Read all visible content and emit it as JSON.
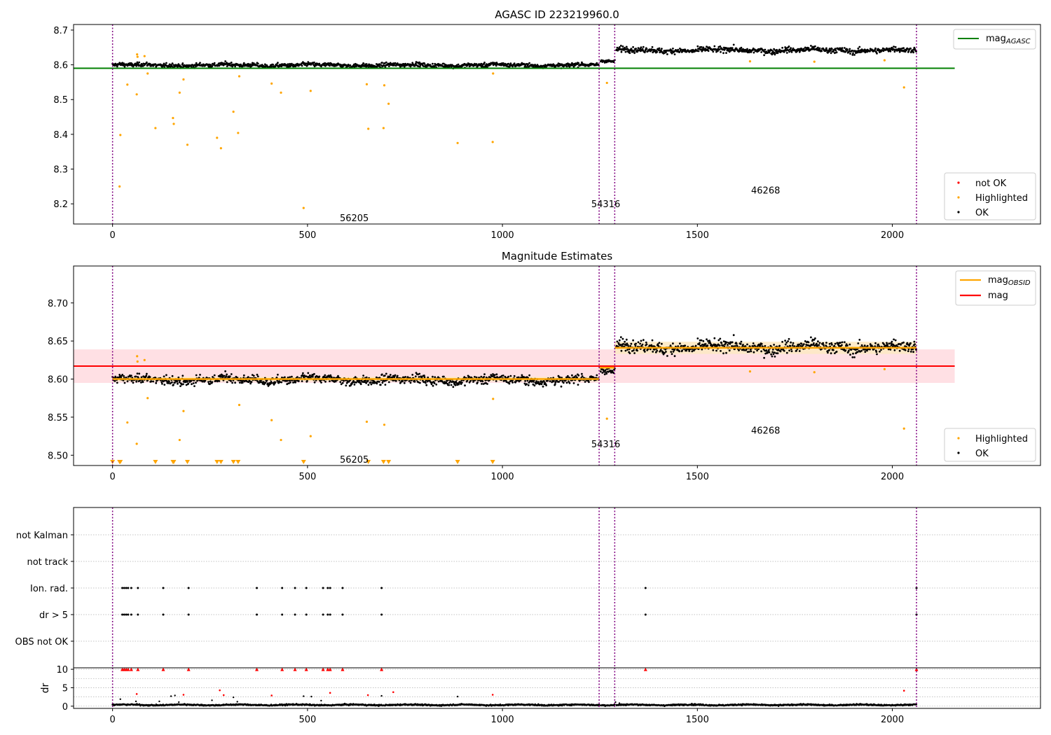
{
  "colors": {
    "ok": "#000000",
    "highlighted": "#ffa500",
    "not_ok": "#ff0000",
    "agasc_line": "#008000",
    "mag_line": "#ff0000",
    "mag_obsid_line": "#ffa500",
    "mag_band": "#ffe0e4",
    "obsid_band": "#fde9c4",
    "obs_boundary": "#800080",
    "grid": "#b0b0b0"
  },
  "chart_data": [
    {
      "type": "scatter",
      "title": "AGASC ID 223219960.0",
      "xlim": [
        -100,
        2380
      ],
      "ylim": [
        8.142,
        8.716
      ],
      "xticks": [
        0,
        500,
        1000,
        1500,
        2000
      ],
      "xtick_labels": [
        "0",
        "500",
        "1000",
        "1500",
        "2000"
      ],
      "yticks": [
        8.2,
        8.3,
        8.4,
        8.5,
        8.6,
        8.7
      ],
      "ytick_labels": [
        "8.2",
        "8.3",
        "8.4",
        "8.5",
        "8.6",
        "8.7"
      ],
      "obs_boundaries": [
        0,
        1248,
        1288,
        2062
      ],
      "obsid_labels": [
        {
          "text": "56205",
          "x": 620,
          "y": 8.16
        },
        {
          "text": "54316",
          "x": 1265,
          "y": 8.2
        },
        {
          "text": "46268",
          "x": 1675,
          "y": 8.24
        }
      ],
      "hlines": [
        {
          "name": "mag_AGASC",
          "y": 8.59,
          "x0": -100,
          "x1": 2160
        }
      ],
      "ok_segments": [
        {
          "x0": 0,
          "x1": 1248,
          "level": 8.599,
          "spread": 0.0055,
          "step": 1.2
        },
        {
          "x0": 1252,
          "x1": 1288,
          "level": 8.612,
          "spread": 0.004,
          "step": 1.5
        },
        {
          "x0": 1292,
          "x1": 2062,
          "level": 8.642,
          "spread": 0.0075,
          "step": 1.2
        }
      ],
      "highlighted": [
        [
          18,
          8.25
        ],
        [
          20,
          8.398
        ],
        [
          38,
          8.543
        ],
        [
          62,
          8.515
        ],
        [
          63,
          8.63
        ],
        [
          64,
          8.623
        ],
        [
          82,
          8.625
        ],
        [
          90,
          8.575
        ],
        [
          110,
          8.418
        ],
        [
          155,
          8.447
        ],
        [
          157,
          8.43
        ],
        [
          172,
          8.52
        ],
        [
          182,
          8.558
        ],
        [
          192,
          8.37
        ],
        [
          268,
          8.39
        ],
        [
          278,
          8.36
        ],
        [
          310,
          8.465
        ],
        [
          322,
          8.404
        ],
        [
          325,
          8.567
        ],
        [
          408,
          8.546
        ],
        [
          432,
          8.52
        ],
        [
          490,
          8.188
        ],
        [
          508,
          8.525
        ],
        [
          652,
          8.544
        ],
        [
          656,
          8.416
        ],
        [
          695,
          8.418
        ],
        [
          697,
          8.541
        ],
        [
          708,
          8.488
        ],
        [
          885,
          8.375
        ],
        [
          975,
          8.378
        ],
        [
          976,
          8.575
        ],
        [
          1268,
          8.548
        ],
        [
          1635,
          8.61
        ],
        [
          1800,
          8.609
        ],
        [
          1980,
          8.613
        ],
        [
          2030,
          8.535
        ]
      ],
      "not_ok": [],
      "legend_lines": [
        {
          "base": "mag",
          "sub": "AGASC",
          "color": "#008000"
        }
      ],
      "legend_points": [
        {
          "label": "not OK",
          "color": "#ff0000"
        },
        {
          "label": "Highlighted",
          "color": "#ffa500"
        },
        {
          "label": "OK",
          "color": "#000000"
        }
      ]
    },
    {
      "type": "scatter",
      "title": "Magnitude Estimates",
      "xlim": [
        -100,
        2380
      ],
      "ylim": [
        8.4865,
        8.7485
      ],
      "xticks": [
        0,
        500,
        1000,
        1500,
        2000
      ],
      "xtick_labels": [
        "0",
        "500",
        "1000",
        "1500",
        "2000"
      ],
      "yticks": [
        8.5,
        8.55,
        8.6,
        8.65,
        8.7
      ],
      "ytick_labels": [
        "8.50",
        "8.55",
        "8.60",
        "8.65",
        "8.70"
      ],
      "obs_boundaries": [
        0,
        1248,
        1288,
        2062
      ],
      "obsid_labels": [
        {
          "text": "56205",
          "x": 620,
          "y": 8.495
        },
        {
          "text": "54316",
          "x": 1265,
          "y": 8.515
        },
        {
          "text": "46268",
          "x": 1675,
          "y": 8.533
        }
      ],
      "mag": {
        "y": 8.617,
        "band": [
          8.595,
          8.639
        ],
        "x0": -100,
        "x1": 2160
      },
      "mag_obsid": [
        {
          "x0": 0,
          "x1": 1248,
          "y": 8.6,
          "band": [
            8.597,
            8.603
          ]
        },
        {
          "x0": 1248,
          "x1": 1288,
          "y": 8.615,
          "band": [
            8.611,
            8.619
          ]
        },
        {
          "x0": 1288,
          "x1": 2062,
          "y": 8.641,
          "band": [
            8.633,
            8.649
          ]
        }
      ],
      "ok_segments": [
        {
          "x0": 0,
          "x1": 1248,
          "level": 8.599,
          "spread": 0.0055,
          "step": 1.2
        },
        {
          "x0": 1252,
          "x1": 1288,
          "level": 8.612,
          "spread": 0.004,
          "step": 1.5
        },
        {
          "x0": 1292,
          "x1": 2062,
          "level": 8.642,
          "spread": 0.0075,
          "step": 1.2
        }
      ],
      "highlighted": [
        [
          38,
          8.543
        ],
        [
          62,
          8.515
        ],
        [
          63,
          8.63
        ],
        [
          64,
          8.623
        ],
        [
          82,
          8.625
        ],
        [
          90,
          8.575
        ],
        [
          172,
          8.52
        ],
        [
          182,
          8.558
        ],
        [
          325,
          8.566
        ],
        [
          408,
          8.546
        ],
        [
          432,
          8.52
        ],
        [
          508,
          8.525
        ],
        [
          652,
          8.544
        ],
        [
          697,
          8.54
        ],
        [
          976,
          8.574
        ],
        [
          1268,
          8.548
        ],
        [
          1635,
          8.61
        ],
        [
          1800,
          8.609
        ],
        [
          1980,
          8.613
        ],
        [
          2030,
          8.535
        ]
      ],
      "clipped_low": [
        0,
        18,
        20,
        110,
        155,
        157,
        192,
        268,
        278,
        310,
        322,
        490,
        656,
        695,
        708,
        885,
        975
      ],
      "legend_lines": [
        {
          "base": "mag",
          "sub": "OBSID",
          "color": "#ffa500"
        },
        {
          "base": "mag",
          "sub": "",
          "color": "#ff0000"
        }
      ],
      "legend_points": [
        {
          "label": "Highlighted",
          "color": "#ffa500"
        },
        {
          "label": "OK",
          "color": "#000000"
        }
      ]
    },
    {
      "type": "scatter",
      "title": "",
      "xlim": [
        -100,
        2380
      ],
      "categories": [
        "not Kalman",
        "not track",
        "Ion. rad.",
        "dr > 5",
        "OBS not OK"
      ],
      "flag_points": {
        "not Kalman": [],
        "not track": [],
        "Ion. rad.": [
          25,
          30,
          35,
          40,
          48,
          65,
          130,
          195,
          370,
          435,
          468,
          497,
          540,
          552,
          558,
          590,
          690,
          1367,
          2062
        ],
        "dr > 5": [
          25,
          30,
          35,
          40,
          48,
          65,
          130,
          195,
          370,
          435,
          468,
          497,
          540,
          552,
          558,
          590,
          690,
          1367,
          2062
        ],
        "OBS not OK": []
      },
      "obs_boundaries": [
        0,
        1248,
        1288,
        2062
      ]
    },
    {
      "type": "scatter",
      "title": "",
      "xlim": [
        -100,
        2380
      ],
      "ylim": [
        -0.6,
        10.4
      ],
      "ylabel": "dr",
      "xticks": [
        0,
        500,
        1000,
        1500,
        2000
      ],
      "xtick_labels": [
        "0",
        "500",
        "1000",
        "1500",
        "2000"
      ],
      "yticks": [
        0,
        5,
        10
      ],
      "ytick_labels": [
        "0",
        "5",
        "10"
      ],
      "obs_boundaries": [
        0,
        1248,
        1288,
        2062
      ],
      "red_capped": [
        25,
        30,
        35,
        40,
        48,
        65,
        130,
        195,
        370,
        435,
        468,
        497,
        540,
        552,
        558,
        590,
        690,
        1367,
        2062
      ],
      "red_points": [
        [
          62,
          3.3
        ],
        [
          182,
          3.1
        ],
        [
          275,
          4.3
        ],
        [
          285,
          3.0
        ],
        [
          408,
          2.9
        ],
        [
          558,
          3.6
        ],
        [
          655,
          3.0
        ],
        [
          720,
          3.8
        ],
        [
          975,
          3.1
        ],
        [
          2030,
          4.2
        ]
      ],
      "black_points": [
        [
          20,
          1.9
        ],
        [
          60,
          1.3
        ],
        [
          120,
          1.3
        ],
        [
          150,
          2.7
        ],
        [
          160,
          2.9
        ],
        [
          170,
          1.1
        ],
        [
          255,
          1.6
        ],
        [
          310,
          2.4
        ],
        [
          320,
          1.2
        ],
        [
          490,
          2.7
        ],
        [
          510,
          2.6
        ],
        [
          535,
          1.5
        ],
        [
          690,
          2.8
        ],
        [
          885,
          2.6
        ],
        [
          1290,
          1.1
        ],
        [
          1300,
          0.8
        ]
      ]
    }
  ]
}
